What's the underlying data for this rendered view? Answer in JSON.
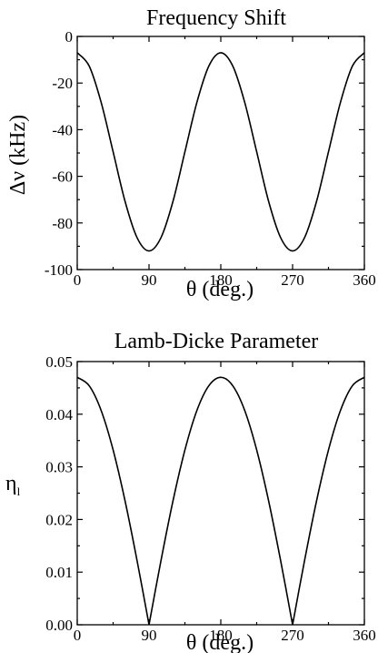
{
  "chart_data": [
    {
      "type": "line",
      "title": "Frequency Shift",
      "xlabel": "θ (deg.)",
      "ylabel": "Δν (kHz)",
      "xlim": [
        0,
        360
      ],
      "ylim": [
        -100,
        0
      ],
      "x_ticks": [
        0,
        90,
        180,
        270,
        360
      ],
      "x_tick_labels": [
        "0",
        "90",
        "180",
        "270",
        "360"
      ],
      "y_ticks": [
        0,
        -20,
        -40,
        -60,
        -80,
        -100
      ],
      "y_tick_labels": [
        "0",
        "-20",
        "-40",
        "-60",
        "-80",
        "-100"
      ],
      "grid": false,
      "series": [
        {
          "x": [
            0,
            15,
            30,
            45,
            60,
            75,
            90,
            105,
            120,
            135,
            150,
            165,
            180,
            195,
            210,
            225,
            240,
            255,
            270,
            285,
            300,
            315,
            330,
            345,
            360
          ],
          "y": [
            -7,
            -12.7,
            -28.3,
            -49.5,
            -70.8,
            -86.3,
            -92,
            -86.3,
            -70.8,
            -49.5,
            -28.3,
            -12.7,
            -7,
            -12.7,
            -28.3,
            -49.5,
            -70.8,
            -86.3,
            -92,
            -86.3,
            -70.8,
            -49.5,
            -28.3,
            -12.7,
            -7
          ]
        }
      ]
    },
    {
      "type": "line",
      "title": "Lamb-Dicke Parameter",
      "xlabel": "θ (deg.)",
      "ylabel": "η",
      "ylabel_subscript": "l",
      "xlim": [
        0,
        360
      ],
      "ylim": [
        0,
        0.05
      ],
      "x_ticks": [
        0,
        90,
        180,
        270,
        360
      ],
      "x_tick_labels": [
        "0",
        "90",
        "180",
        "270",
        "360"
      ],
      "y_ticks": [
        0.05,
        0.04,
        0.03,
        0.02,
        0.01,
        0.0
      ],
      "y_tick_labels": [
        "0.05",
        "0.04",
        "0.03",
        "0.02",
        "0.01",
        "0.00"
      ],
      "grid": false,
      "series": [
        {
          "x": [
            0,
            15,
            30,
            45,
            60,
            75,
            90,
            105,
            120,
            135,
            150,
            165,
            180,
            195,
            210,
            225,
            240,
            255,
            270,
            285,
            300,
            315,
            330,
            345,
            360
          ],
          "y": [
            0.047,
            0.0454,
            0.0407,
            0.0332,
            0.0235,
            0.0122,
            0,
            0.0122,
            0.0235,
            0.0332,
            0.0407,
            0.0454,
            0.047,
            0.0454,
            0.0407,
            0.0332,
            0.0235,
            0.0122,
            0,
            0.0122,
            0.0235,
            0.0332,
            0.0407,
            0.0454,
            0.047
          ]
        }
      ]
    }
  ]
}
